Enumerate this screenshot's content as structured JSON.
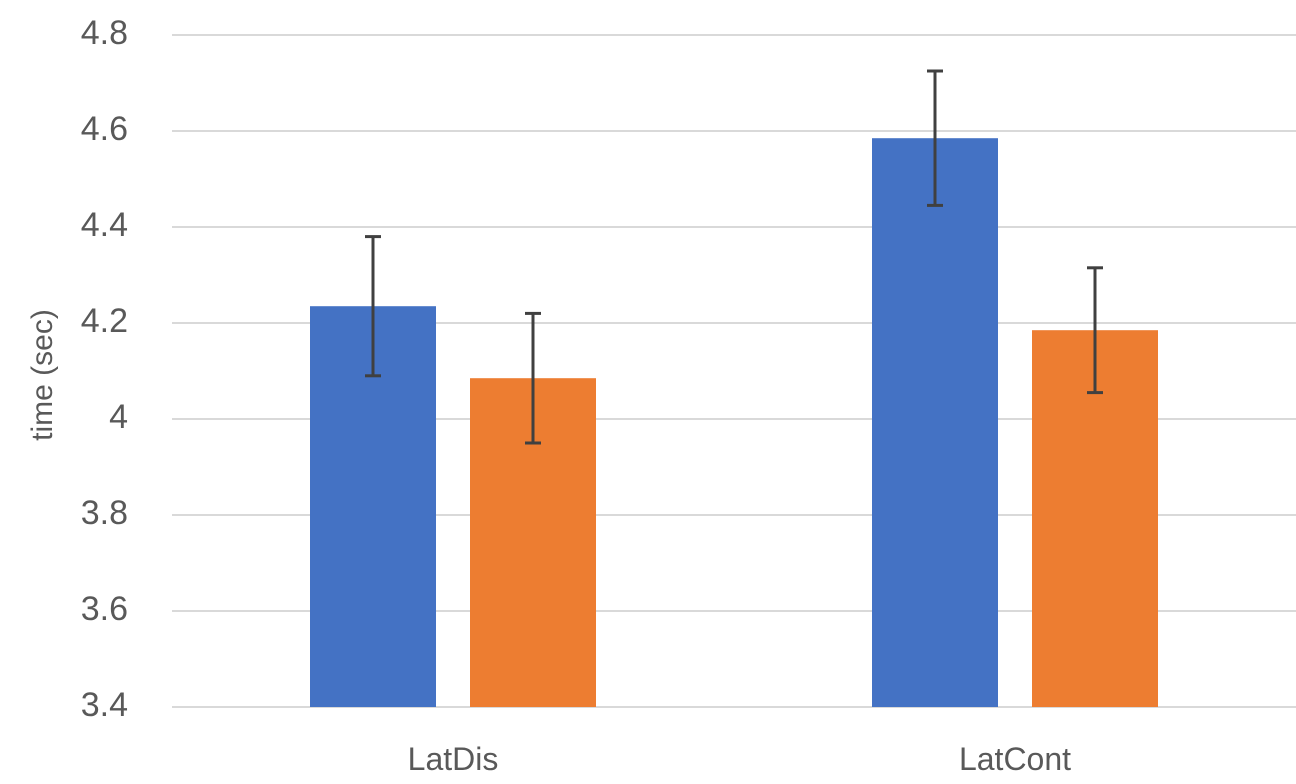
{
  "chart_data": {
    "type": "bar",
    "title": "",
    "xlabel": "",
    "ylabel": "time (sec)",
    "ylim": [
      3.4,
      4.8
    ],
    "yticks": [
      3.4,
      3.6,
      3.8,
      4,
      4.2,
      4.4,
      4.6,
      4.8
    ],
    "ytick_labels": [
      "3.4",
      "3.6",
      "3.8",
      "4",
      "4.2",
      "4.4",
      "4.6",
      "4.8"
    ],
    "grid": true,
    "legend": "none",
    "categories": [
      "LatDis",
      "LatCont"
    ],
    "series": [
      {
        "color": "#4472C4",
        "values": [
          4.235,
          4.585
        ],
        "error": [
          0.145,
          0.14
        ]
      },
      {
        "color": "#ED7D31",
        "values": [
          4.085,
          4.185
        ],
        "error": [
          0.135,
          0.13
        ]
      }
    ]
  }
}
